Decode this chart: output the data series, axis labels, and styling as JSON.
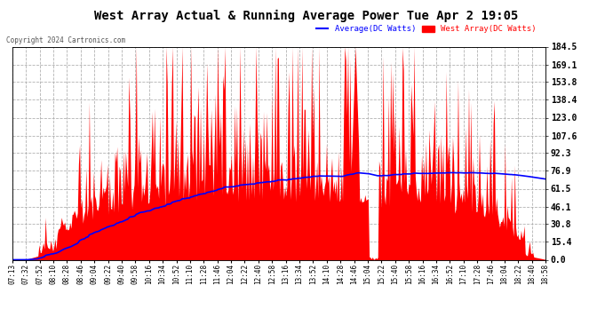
{
  "title": "West Array Actual & Running Average Power Tue Apr 2 19:05",
  "copyright": "Copyright 2024 Cartronics.com",
  "legend_avg": "Average(DC Watts)",
  "legend_west": "West Array(DC Watts)",
  "ylabel_right_ticks": [
    0.0,
    15.4,
    30.8,
    46.1,
    61.5,
    76.9,
    92.3,
    107.6,
    123.0,
    138.4,
    153.8,
    169.1,
    184.5
  ],
  "ylim": [
    0.0,
    184.5
  ],
  "bg_color": "#ffffff",
  "plot_bg_color": "#ffffff",
  "grid_color": "#aaaaaa",
  "bar_color": "#ff0000",
  "avg_line_color": "#0000ff",
  "title_color": "#000000",
  "copyright_color": "#555555",
  "legend_avg_color": "#0000ff",
  "legend_west_color": "#ff0000",
  "x_tick_labels": [
    "07:13",
    "07:32",
    "07:52",
    "08:10",
    "08:28",
    "08:46",
    "09:04",
    "09:22",
    "09:40",
    "09:58",
    "10:16",
    "10:34",
    "10:52",
    "11:10",
    "11:28",
    "11:46",
    "12:04",
    "12:22",
    "12:40",
    "12:58",
    "13:16",
    "13:34",
    "13:52",
    "14:10",
    "14:28",
    "14:46",
    "15:04",
    "15:22",
    "15:40",
    "15:58",
    "16:16",
    "16:34",
    "16:52",
    "17:10",
    "17:28",
    "17:46",
    "18:04",
    "18:22",
    "18:40",
    "18:58"
  ],
  "n_points": 500
}
